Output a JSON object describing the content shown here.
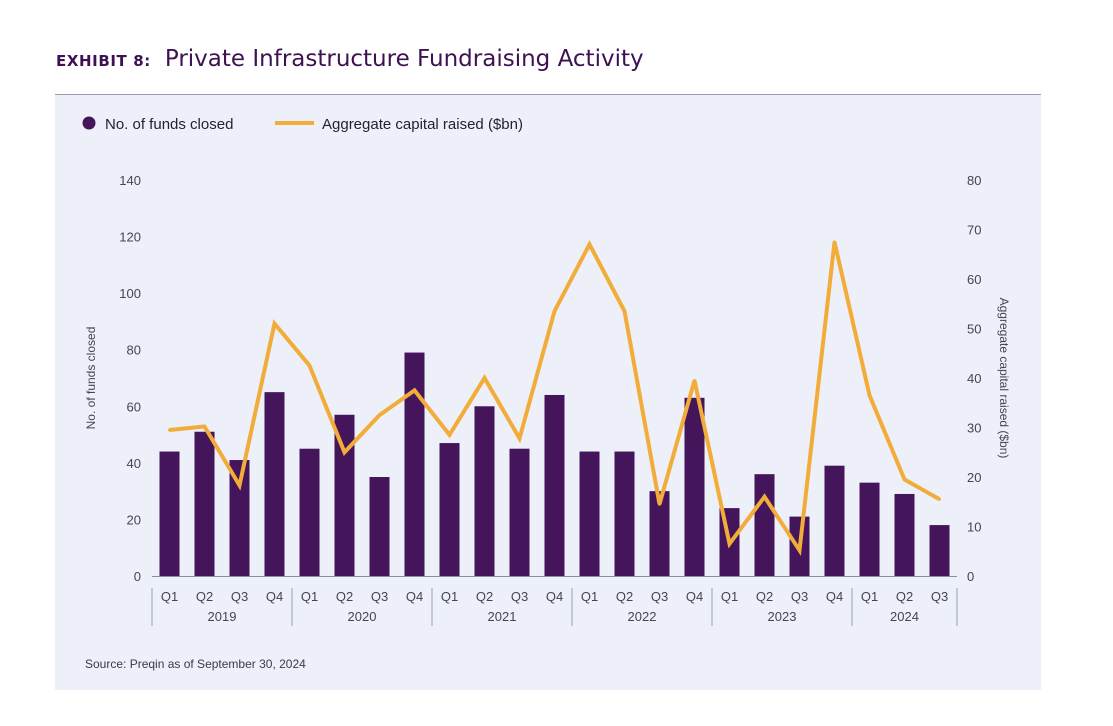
{
  "header": {
    "exhibit_label": "EXHIBIT 8:",
    "title": "Private Infrastructure Fundraising Activity"
  },
  "source": "Source: Preqin as of September 30, 2024",
  "colors": {
    "bars": "#45155c",
    "line": "#f2ac3a",
    "title": "#3d1152",
    "panel_bg": "#edf0f8"
  },
  "chart_data": {
    "type": "bar",
    "title": "Private Infrastructure Fundraising Activity",
    "categories": [
      "Q1",
      "Q2",
      "Q3",
      "Q4",
      "Q1",
      "Q2",
      "Q3",
      "Q4",
      "Q1",
      "Q2",
      "Q3",
      "Q4",
      "Q1",
      "Q2",
      "Q3",
      "Q4",
      "Q1",
      "Q2",
      "Q3",
      "Q4",
      "Q1",
      "Q2",
      "Q3"
    ],
    "groups": [
      {
        "label": "2019",
        "count": 4
      },
      {
        "label": "2020",
        "count": 4
      },
      {
        "label": "2021",
        "count": 4
      },
      {
        "label": "2022",
        "count": 4
      },
      {
        "label": "2023",
        "count": 4
      },
      {
        "label": "2024",
        "count": 3
      }
    ],
    "series": [
      {
        "name": "No. of funds closed",
        "type": "bar",
        "axis": "left",
        "values": [
          44,
          51,
          41,
          65,
          45,
          57,
          35,
          79,
          47,
          60,
          45,
          64,
          44,
          44,
          30,
          63,
          24,
          36,
          21,
          39,
          33,
          29,
          18
        ]
      },
      {
        "name": "Aggregate capital raised ($bn)",
        "type": "line",
        "axis": "right",
        "values": [
          29.5,
          30.2,
          18.3,
          51.0,
          42.5,
          25.0,
          32.5,
          37.5,
          28.5,
          40.0,
          27.8,
          53.5,
          67.0,
          53.5,
          14.5,
          39.5,
          6.5,
          16.0,
          5.2,
          67.5,
          36.5,
          19.5,
          15.5
        ]
      }
    ],
    "ylabel": "No. of funds closed",
    "y2label": "Aggregate capital raised ($bn)",
    "ylim": [
      0,
      140
    ],
    "y2lim": [
      0,
      80
    ],
    "yticks": [
      0,
      20,
      40,
      60,
      80,
      100,
      120,
      140
    ],
    "y2ticks": [
      0,
      10,
      20,
      30,
      40,
      50,
      60,
      70,
      80
    ],
    "grid": false,
    "legend": "top-left"
  }
}
